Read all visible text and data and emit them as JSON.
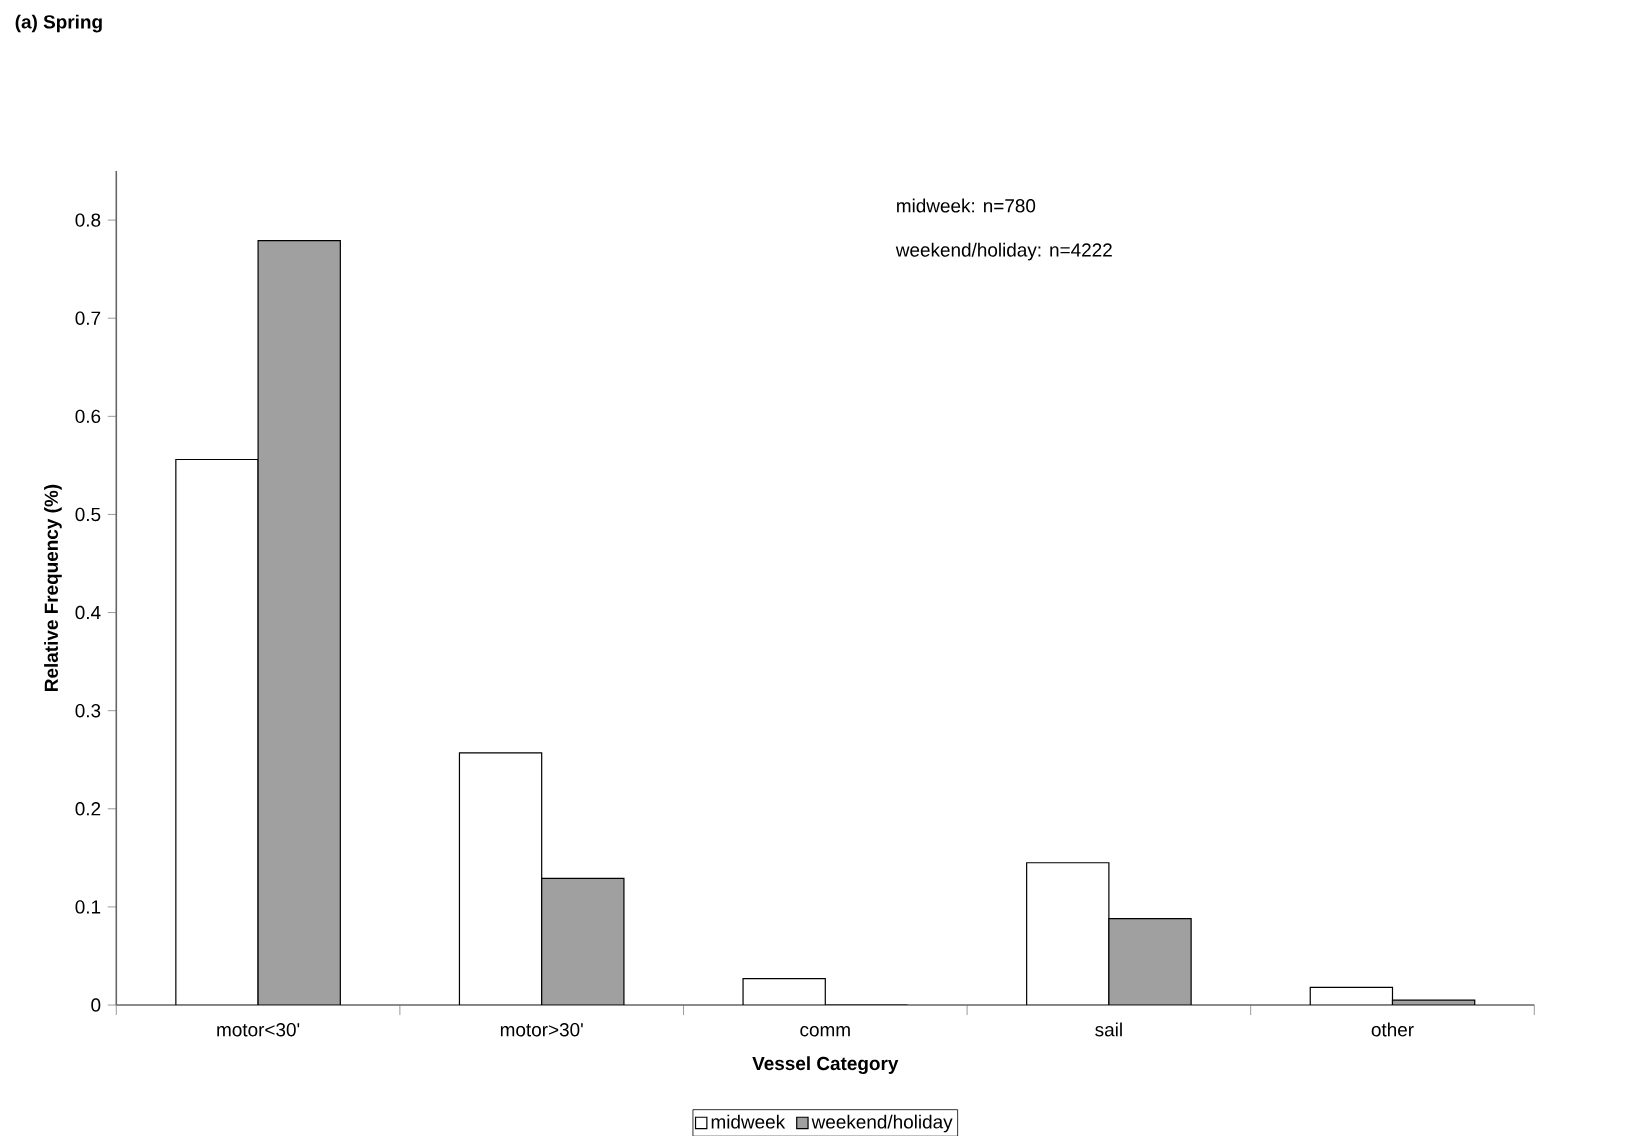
{
  "chart_data": {
    "type": "bar",
    "title": "(a) Spring",
    "xlabel": "Vessel Category",
    "ylabel": "Relative Frequency (%)",
    "categories": [
      "motor<30'",
      "motor>30'",
      "comm",
      "sail",
      "other"
    ],
    "series": [
      {
        "name": "midweek",
        "color": "#ffffff",
        "values": [
          0.556,
          0.257,
          0.027,
          0.145,
          0.018
        ]
      },
      {
        "name": "weekend/holiday",
        "color": "#a0a0a0",
        "values": [
          0.779,
          0.129,
          0,
          0.088,
          0.005
        ]
      }
    ],
    "ylim": [
      0,
      0.85
    ],
    "yticks": [
      0,
      0.1,
      0.2,
      0.3,
      0.4,
      0.5,
      0.6,
      0.7,
      0.8
    ],
    "legend": "bottom",
    "annotations": [
      "midweek: n=780",
      "weekend/holiday: n=4222"
    ]
  }
}
